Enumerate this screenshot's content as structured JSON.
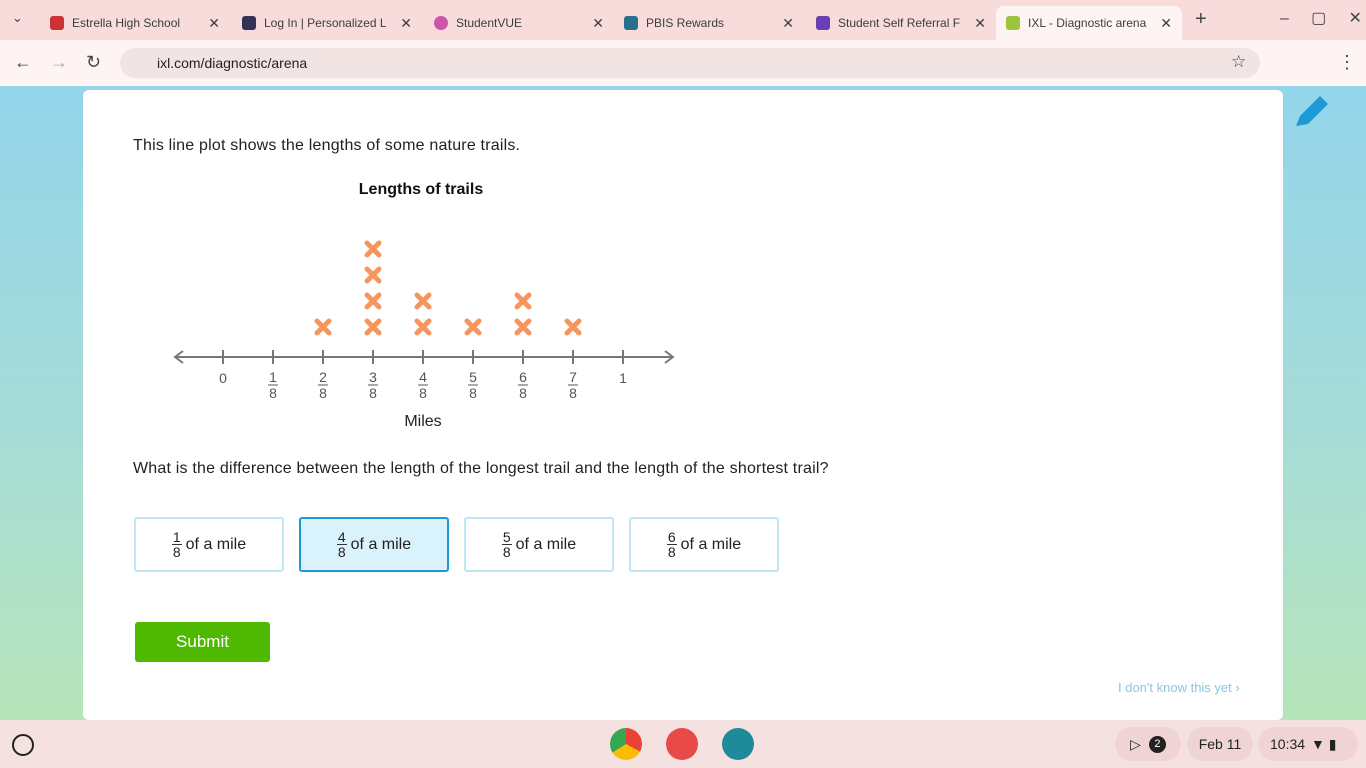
{
  "browser": {
    "tabs": [
      "Estrella High School",
      "Log In | Personalized L",
      "StudentVUE",
      "PBIS Rewards",
      "Student Self Referral F",
      "IXL - Diagnostic arena"
    ],
    "url": "ixl.com/diagnostic/arena"
  },
  "question": {
    "prompt": "This line plot shows the lengths of some nature trails.",
    "ask": "What is the difference between the length of the longest trail and the length of the shortest trail?",
    "choices": [
      {
        "numerator": "1",
        "denominator": "8",
        "text": "of a mile",
        "selected": false
      },
      {
        "numerator": "4",
        "denominator": "8",
        "text": "of a mile",
        "selected": true
      },
      {
        "numerator": "5",
        "denominator": "8",
        "text": "of a mile",
        "selected": false
      },
      {
        "numerator": "6",
        "denominator": "8",
        "text": "of a mile",
        "selected": false
      }
    ],
    "submit": "Submit",
    "skip": "I don't know this yet ›"
  },
  "chart_data": {
    "type": "dot",
    "title": "Lengths of trails",
    "x_label": "Miles",
    "color": "#f7965c",
    "x": [
      0.25,
      0.375,
      0.5,
      0.625,
      0.75,
      0.875
    ],
    "values": [
      1,
      4,
      2,
      1,
      2,
      1
    ],
    "xlim": [
      -0.125,
      1.125
    ],
    "xticks": [
      0,
      {
        "value": 0.125,
        "label": [
          "1",
          "8"
        ]
      },
      {
        "value": 0.25,
        "label": [
          "2",
          "8"
        ]
      },
      {
        "value": 0.375,
        "label": [
          "3",
          "8"
        ]
      },
      {
        "value": 0.5,
        "label": [
          "4",
          "8"
        ]
      },
      {
        "value": 0.625,
        "label": [
          "5",
          "8"
        ]
      },
      {
        "value": 0.75,
        "label": [
          "6",
          "8"
        ]
      },
      {
        "value": 0.875,
        "label": [
          "7",
          "8"
        ]
      },
      1
    ]
  },
  "shelf": {
    "notifications": "2",
    "date": "Feb 11",
    "time": "10:34"
  }
}
